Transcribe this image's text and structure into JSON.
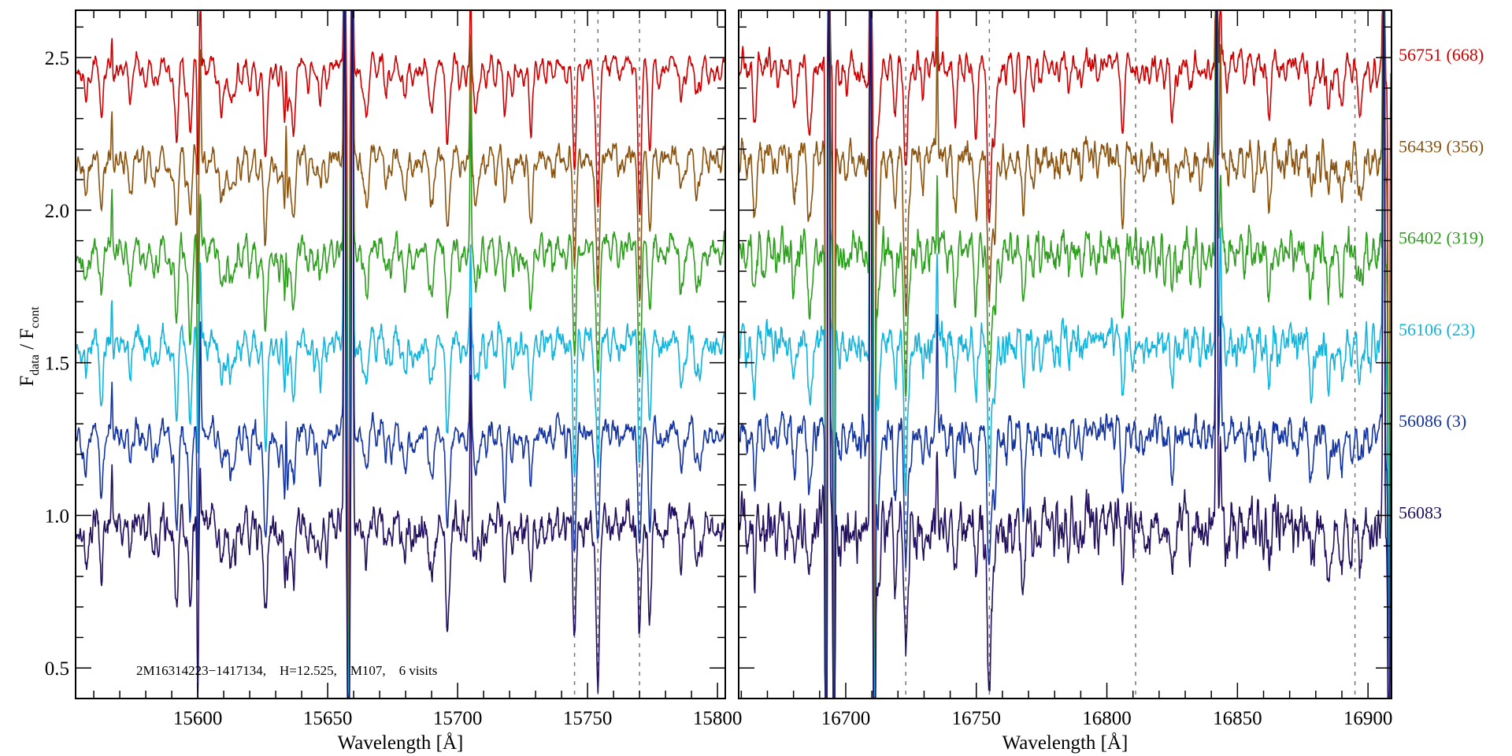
{
  "chart_data": {
    "type": "line",
    "title": "",
    "ylabel": {
      "main": "F",
      "sub1": "data",
      "sep": " / F",
      "sub2": "cont"
    },
    "ylim": [
      0.4,
      2.655
    ],
    "yticks": [
      0.5,
      1.0,
      1.5,
      2.0,
      2.5
    ],
    "ytick_labels": [
      "0.5",
      "1.0",
      "1.5",
      "2.0",
      "2.5"
    ],
    "annotation": "2M16314223−1417134,    H=12.525,    M107,    6 visits",
    "series": [
      {
        "name": "56751 (668)",
        "color": "#cc0000",
        "offset": 1.5,
        "noise": 0.018
      },
      {
        "name": "56439 (356)",
        "color": "#8a5410",
        "offset": 1.2,
        "noise": 0.026
      },
      {
        "name": "56402 (319)",
        "color": "#2e9e1e",
        "offset": 0.9,
        "noise": 0.03
      },
      {
        "name": "56106 (23)",
        "color": "#12b4dc",
        "offset": 0.6,
        "noise": 0.03
      },
      {
        "name": "56086 (3)",
        "color": "#1434a0",
        "offset": 0.3,
        "noise": 0.028
      },
      {
        "name": "56083",
        "color": "#23105e",
        "offset": 0.0,
        "noise": 0.045
      }
    ],
    "panels": [
      {
        "xlabel": "Wavelength [Å]",
        "xlim": [
          15553,
          15803
        ],
        "xticks": [
          15600,
          15650,
          15700,
          15750,
          15800
        ],
        "xtick_labels": [
          "15600",
          "15650",
          "15700",
          "15750",
          "15800"
        ],
        "dashed_lines": [
          15745,
          15754,
          15770
        ],
        "noise_scale": 1.0,
        "absorption_lines": [
          [
            15557,
            0.15
          ],
          [
            15563,
            0.2
          ],
          [
            15574,
            0.14
          ],
          [
            15592,
            0.2
          ],
          [
            15597,
            0.25
          ],
          [
            15609,
            0.15
          ],
          [
            15613,
            0.1
          ],
          [
            15626,
            0.3
          ],
          [
            15634,
            0.25
          ],
          [
            15637,
            0.2
          ],
          [
            15647,
            0.1
          ],
          [
            15665,
            0.15
          ],
          [
            15680,
            0.1
          ],
          [
            15690,
            0.15
          ],
          [
            15696,
            0.3
          ],
          [
            15707,
            0.15
          ],
          [
            15718,
            0.1
          ],
          [
            15728,
            0.15
          ],
          [
            15745,
            0.32
          ],
          [
            15754,
            0.45
          ],
          [
            15770,
            0.42
          ],
          [
            15774,
            0.25
          ],
          [
            15786,
            0.15
          ],
          [
            15792,
            0.1
          ]
        ],
        "spikes": [
          [
            15567,
            0.25
          ],
          [
            15600,
            -0.6
          ],
          [
            15601,
            0.35
          ],
          [
            15634,
            0.3
          ],
          [
            15656.5,
            3
          ],
          [
            15658,
            -3
          ],
          [
            15659.5,
            3
          ],
          [
            15705,
            0.5
          ]
        ]
      },
      {
        "xlabel": "Wavelength [Å]",
        "xlim": [
          16659,
          16909
        ],
        "xticks": [
          16700,
          16750,
          16800,
          16850,
          16900
        ],
        "xtick_labels": [
          "16700",
          "16750",
          "16800",
          "16850",
          "16900"
        ],
        "dashed_lines": [
          16723,
          16755,
          16811,
          16895
        ],
        "noise_scale": 1.5,
        "absorption_lines": [
          [
            16665,
            0.15
          ],
          [
            16680,
            0.12
          ],
          [
            16686,
            0.2
          ],
          [
            16712,
            0.2
          ],
          [
            16719,
            0.15
          ],
          [
            16723,
            0.45
          ],
          [
            16742,
            0.15
          ],
          [
            16750,
            0.15
          ],
          [
            16755,
            0.45
          ],
          [
            16757,
            0.2
          ],
          [
            16768,
            0.2
          ],
          [
            16806,
            0.15
          ],
          [
            16825,
            0.15
          ],
          [
            16862,
            0.1
          ],
          [
            16878,
            0.15
          ],
          [
            16885,
            0.15
          ],
          [
            16890,
            0.15
          ],
          [
            16897,
            0.1
          ]
        ],
        "spikes": [
          [
            16692.5,
            -3
          ],
          [
            16693.5,
            3
          ],
          [
            16695.5,
            -3
          ],
          [
            16709.5,
            3
          ],
          [
            16711,
            -3
          ],
          [
            16735,
            0.4
          ],
          [
            16842,
            3
          ],
          [
            16843.5,
            0.35
          ],
          [
            16906,
            3
          ],
          [
            16908,
            -3
          ]
        ]
      }
    ]
  }
}
